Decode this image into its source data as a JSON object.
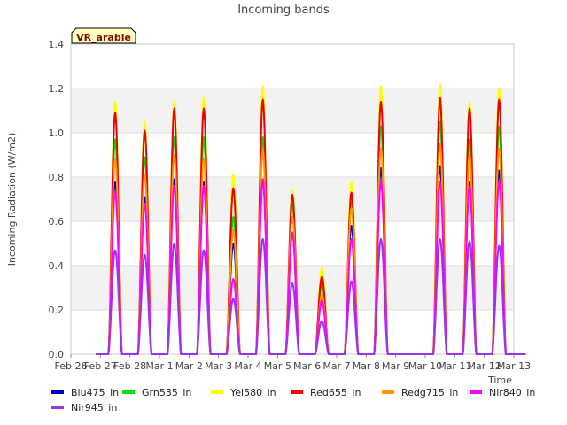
{
  "chart_data": {
    "type": "line",
    "title": "Incoming bands",
    "xlabel": "Time",
    "ylabel": "Incoming Radiation (W/m2)",
    "badge": "VR_arable",
    "xlim": [
      "Feb 26",
      "Mar 13"
    ],
    "ylim": [
      0.0,
      1.4
    ],
    "x_ticks": [
      "Feb 26",
      "Feb 27",
      "Feb 28",
      "Mar 1",
      "Mar 2",
      "Mar 3",
      "Mar 4",
      "Mar 5",
      "Mar 6",
      "Mar 7",
      "Mar 8",
      "Mar 9",
      "Mar 10",
      "Mar 11",
      "Mar 12",
      "Mar 13"
    ],
    "y_ticks": [
      "0.0",
      "0.2",
      "0.4",
      "0.6",
      "0.8",
      "1.0",
      "1.2",
      "1.4"
    ],
    "grid": "horizontal bands",
    "legend_placement": "bottom",
    "days": [
      "Feb 27",
      "Feb 28",
      "Mar 1",
      "Mar 2",
      "Mar 3",
      "Mar 4",
      "Mar 5",
      "Mar 6",
      "Mar 7",
      "Mar 8",
      "Mar 9",
      "Mar 10",
      "Mar 11",
      "Mar 12"
    ],
    "series": [
      {
        "name": "Blu475_in",
        "color": "#0000cc",
        "daily_peak": [
          0.78,
          0.71,
          0.79,
          0.78,
          0.5,
          0.79,
          0.55,
          0.26,
          0.58,
          0.84,
          0.0,
          0.85,
          0.78,
          0.83
        ]
      },
      {
        "name": "Grn535_in",
        "color": "#00dd00",
        "daily_peak": [
          0.97,
          0.89,
          0.98,
          0.98,
          0.62,
          0.98,
          0.68,
          0.32,
          0.7,
          1.03,
          0.0,
          1.05,
          0.97,
          1.03
        ]
      },
      {
        "name": "Yel580_in",
        "color": "#ffff00",
        "daily_peak": [
          1.14,
          1.05,
          1.14,
          1.16,
          0.81,
          1.21,
          0.74,
          0.39,
          0.78,
          1.21,
          0.0,
          1.22,
          1.14,
          1.2
        ]
      },
      {
        "name": "Red655_in",
        "color": "#ee0000",
        "daily_peak": [
          1.09,
          1.01,
          1.11,
          1.11,
          0.75,
          1.15,
          0.72,
          0.35,
          0.73,
          1.14,
          0.0,
          1.16,
          1.11,
          1.15
        ]
      },
      {
        "name": "Redg715_in",
        "color": "#ff9900",
        "daily_peak": [
          0.88,
          0.81,
          0.9,
          0.88,
          0.56,
          0.92,
          0.62,
          0.27,
          0.66,
          0.93,
          0.0,
          0.95,
          0.9,
          0.93
        ]
      },
      {
        "name": "Nir840_in",
        "color": "#ff00ff",
        "daily_peak": [
          0.73,
          0.68,
          0.76,
          0.76,
          0.34,
          0.79,
          0.55,
          0.24,
          0.52,
          0.78,
          0.0,
          0.78,
          0.76,
          0.78
        ]
      },
      {
        "name": "Nir945_in",
        "color": "#9933ee",
        "daily_peak": [
          0.47,
          0.45,
          0.5,
          0.47,
          0.25,
          0.52,
          0.32,
          0.15,
          0.33,
          0.52,
          0.0,
          0.52,
          0.51,
          0.49
        ]
      }
    ]
  }
}
